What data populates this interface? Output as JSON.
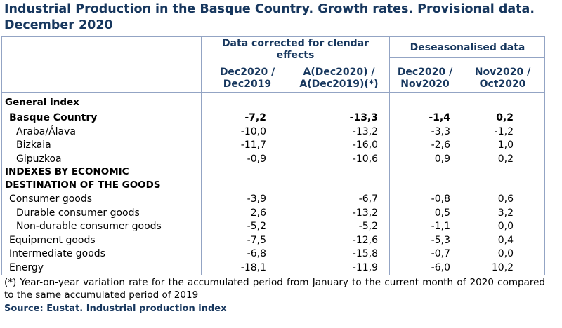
{
  "title_line1": "Industrial Production in the Basque Country. Growth rates. Provisional data.",
  "title_line2": "December 2020",
  "headers": {
    "group1": "Data corrected for clendar effects",
    "group2": "Deseasonalised data",
    "col1_l1": "Dec2020 /",
    "col1_l2": "Dec2019",
    "col2_l1": "A(Dec2020) /",
    "col2_l2": "A(Dec2019)(*)",
    "col3_l1": "Dec2020 /",
    "col3_l2": "Nov2020",
    "col4_l1": "Nov2020 /",
    "col4_l2": "Oct2020"
  },
  "section1": "General index",
  "rows1": [
    {
      "label": "Basque Country",
      "v": [
        "-7,2",
        "-13,3",
        "-1,4",
        "0,2"
      ]
    },
    {
      "label": "Araba/Álava",
      "v": [
        "-10,0",
        "-13,2",
        "-3,3",
        "-1,2"
      ]
    },
    {
      "label": "Bizkaia",
      "v": [
        "-11,7",
        "-16,0",
        "-2,6",
        "1,0"
      ]
    },
    {
      "label": "Gipuzkoa",
      "v": [
        "-0,9",
        "-10,6",
        "0,9",
        "0,2"
      ]
    }
  ],
  "section2_l1": "INDEXES BY ECONOMIC",
  "section2_l2": "DESTINATION OF THE GOODS",
  "rows2": [
    {
      "label": "Consumer goods",
      "v": [
        "-3,9",
        "-6,7",
        "-0,8",
        "0,6"
      ]
    },
    {
      "label": "Durable consumer goods",
      "v": [
        "2,6",
        "-13,2",
        "0,5",
        "3,2"
      ]
    },
    {
      "label": "Non-durable consumer goods",
      "v": [
        "-5,2",
        "-5,2",
        "-1,1",
        "0,0"
      ]
    },
    {
      "label": "Equipment goods",
      "v": [
        "-7,5",
        "-12,6",
        "-5,3",
        "0,4"
      ]
    },
    {
      "label": "Intermediate goods",
      "v": [
        "-6,8",
        "-15,8",
        "-0,7",
        "0,0"
      ]
    },
    {
      "label": "Energy",
      "v": [
        "-18,1",
        "-11,9",
        "-6,0",
        "10,2"
      ]
    }
  ],
  "footnote": "(*) Year-on-year variation rate for the accumulated period from January to the current month of 2020 compared to the same accumulated period of 2019",
  "source": "Source: Eustat. Industrial production index"
}
